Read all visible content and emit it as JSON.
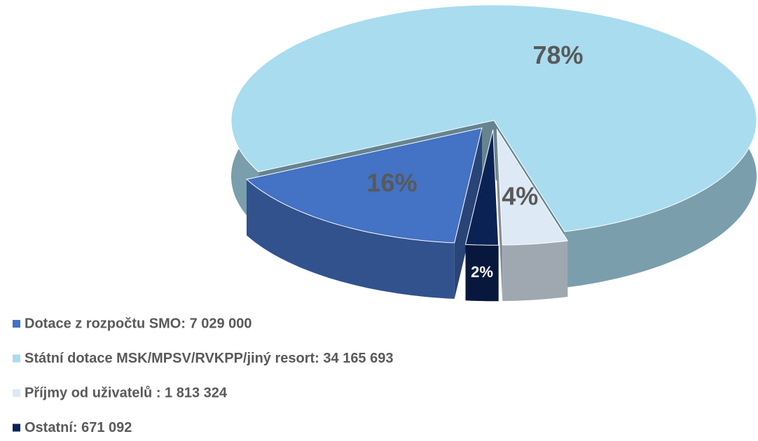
{
  "chart_data": {
    "type": "pie",
    "style": "3d-exploded",
    "categories": [
      "Dotace z rozpočtu SMO: 7 029 000",
      "Státní dotace MSK/MPSV/RVKPP/jiný resort: 34 165 693",
      "Příjmy od uživatelů : 1 813 324",
      "Ostatní: 671 092"
    ],
    "values": [
      16,
      78,
      4,
      2
    ],
    "value_labels": [
      "16%",
      "78%",
      "4%",
      "2%"
    ],
    "colors": [
      "#4472c4",
      "#a9dcef",
      "#dde9f4",
      "#0b2255"
    ],
    "legend": "bottom-left"
  }
}
